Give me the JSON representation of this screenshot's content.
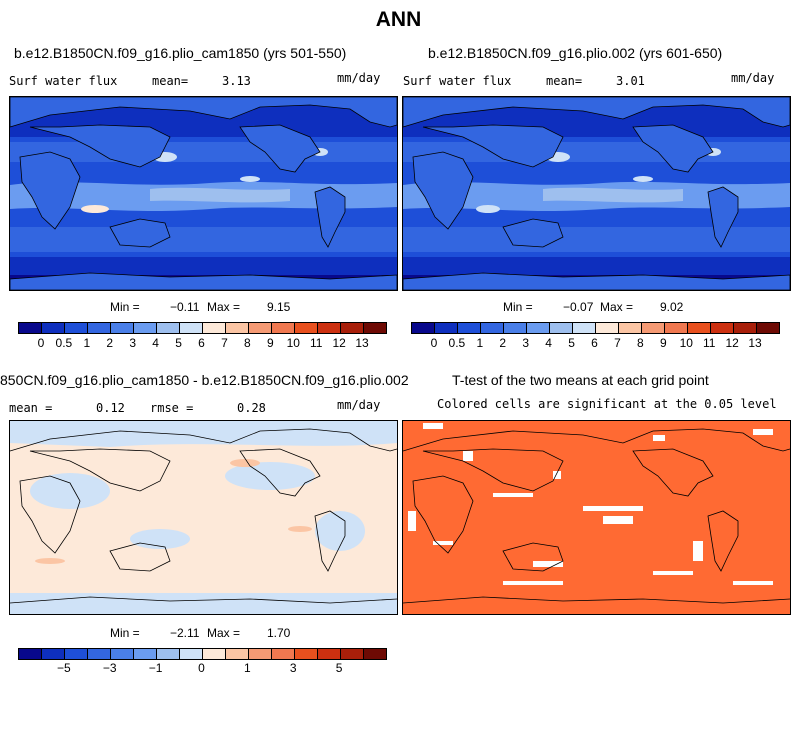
{
  "title": "ANN",
  "units": "mm/day",
  "panels": {
    "p1": {
      "case": "b.e12.B1850CN.f09_g16.plio_cam1850 (yrs 501-550)",
      "variable": "Surf water flux",
      "mean_label": "mean=",
      "mean": "3.13",
      "min_label": "Min =",
      "min": "−0.11",
      "max_label": "Max =",
      "max": "9.15"
    },
    "p2": {
      "case": "b.e12.B1850CN.f09_g16.plio.002 (yrs 601-650)",
      "variable": "Surf water flux",
      "mean_label": "mean=",
      "mean": "3.01",
      "min_label": "Min =",
      "min": "−0.07",
      "max_label": "Max =",
      "max": "9.02"
    },
    "p3": {
      "case": "850CN.f09_g16.plio_cam1850 - b.e12.B1850CN.f09_g16.plio.002",
      "mean_label": "mean =",
      "mean": "0.12",
      "rmse_label": "rmse =",
      "rmse": "0.28",
      "min_label": "Min =",
      "min": "−2.11",
      "max_label": "Max =",
      "max": "1.70"
    },
    "p4": {
      "title": "T-test of the two means at each grid point",
      "subtitle": "Colored cells are significant at the 0.05 level"
    }
  },
  "colorbar_abs": {
    "colors": [
      "#08088c",
      "#0e2fbe",
      "#1e4fd8",
      "#3366e0",
      "#4a7fe8",
      "#6b9cf0",
      "#9ebfee",
      "#cfe2f7",
      "#fde9d9",
      "#fbc5a4",
      "#f59a74",
      "#f07850",
      "#e8501e",
      "#cc3010",
      "#a81f0a",
      "#6e0a04"
    ],
    "labels": [
      "0",
      "0.5",
      "1",
      "2",
      "3",
      "4",
      "5",
      "6",
      "7",
      "8",
      "9",
      "10",
      "11",
      "12",
      "13"
    ]
  },
  "colorbar_diff": {
    "colors": [
      "#08088c",
      "#0e2fbe",
      "#1e4fd8",
      "#3366e0",
      "#4a7fe8",
      "#6b9cf0",
      "#9ebfee",
      "#cfe2f7",
      "#fde9d9",
      "#fbc5a4",
      "#f59a74",
      "#f07850",
      "#e8501e",
      "#cc3010",
      "#a81f0a",
      "#6e0a04"
    ],
    "labels": [
      "−5",
      "−3",
      "−1",
      "0",
      "1",
      "3",
      "5"
    ]
  },
  "colors": {
    "ocean_deep": "#1e4fd8",
    "diff_bg": "#fde9d9",
    "diff_neg": "#cfe2f7",
    "signif": "#ff6a33"
  }
}
